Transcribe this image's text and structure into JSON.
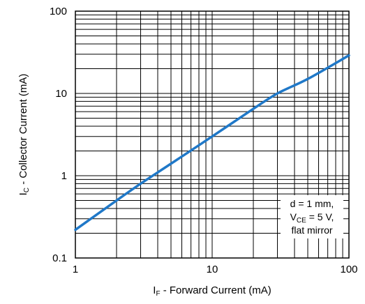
{
  "chart_data": {
    "type": "line",
    "title": "",
    "x_scale": "log",
    "y_scale": "log",
    "xlim": [
      1,
      100
    ],
    "ylim": [
      0.1,
      100
    ],
    "grid": true,
    "x_ticks": [
      "1",
      "10",
      "100"
    ],
    "y_ticks": [
      "0.1",
      "1",
      "10",
      "100"
    ],
    "xlabel": {
      "main": "I",
      "sub": "F",
      "rest": " - Forward Current (mA)"
    },
    "ylabel": {
      "main": "I",
      "sub": "C",
      "rest": " - Collector Current (mA)"
    },
    "annotation": {
      "line1": "d = 1 mm,",
      "line2_main": "V",
      "line2_sub": "CE",
      "line2_rest": " = 5 V,",
      "line3": "flat mirror"
    },
    "series": [
      {
        "color": "#1f78c8",
        "x": [
          1,
          2,
          3,
          5,
          10,
          20,
          30,
          50,
          100
        ],
        "y": [
          0.22,
          0.5,
          0.8,
          1.4,
          3.0,
          6.5,
          10,
          15,
          29
        ]
      }
    ]
  }
}
